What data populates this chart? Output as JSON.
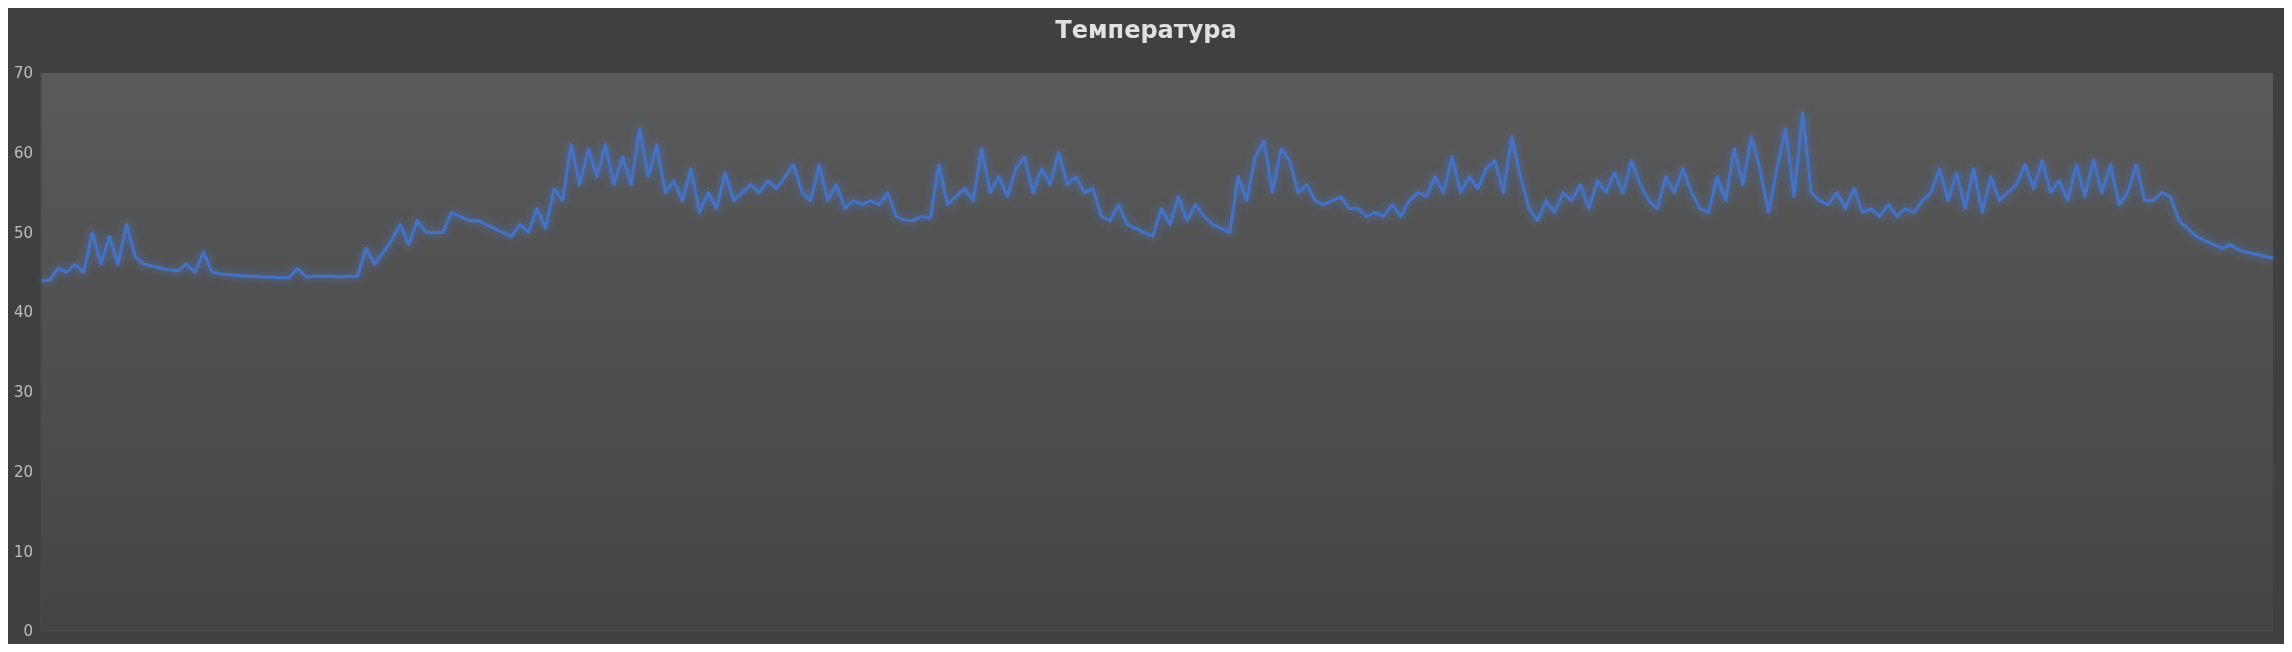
{
  "chart_data": {
    "type": "line",
    "title": "Температура",
    "categories": [
      null,
      null,
      null,
      null,
      null,
      null,
      null,
      null,
      null,
      null,
      null,
      null,
      null,
      null,
      null,
      null,
      null,
      null,
      null,
      null,
      null,
      null,
      null,
      null,
      null,
      null,
      null,
      null,
      null,
      null,
      null,
      null,
      null,
      null,
      null,
      null,
      null,
      null,
      null,
      null,
      null,
      null,
      null,
      null,
      null,
      null,
      null,
      null,
      null,
      null,
      null,
      null,
      null,
      null,
      null,
      null,
      null,
      null,
      null,
      null,
      null,
      null,
      null,
      null,
      null,
      null,
      null,
      null,
      null,
      null,
      null,
      null,
      null,
      null,
      null,
      null,
      null,
      null,
      null,
      null,
      null,
      null,
      null,
      null,
      null,
      null,
      null,
      null,
      null,
      null,
      null,
      null,
      null,
      null,
      null,
      null,
      null,
      null,
      null,
      null,
      null,
      null,
      null,
      null,
      null,
      null,
      null,
      null,
      null,
      null,
      null,
      null,
      null,
      null,
      null,
      null,
      null,
      null,
      null,
      null,
      null,
      null,
      null,
      null,
      null,
      null,
      null,
      null,
      null,
      null,
      null,
      null,
      null,
      null,
      null,
      null,
      null,
      null,
      null,
      null,
      null,
      null,
      null,
      null,
      null,
      null,
      null,
      null,
      null,
      null,
      null,
      null,
      null,
      null,
      null,
      null,
      null,
      null,
      null,
      null,
      null,
      null,
      null,
      null,
      null,
      null,
      null,
      null,
      null,
      null,
      null,
      null,
      null,
      null,
      null,
      null,
      null,
      null,
      null,
      null,
      null,
      null,
      null,
      null,
      null,
      null,
      null,
      null,
      null,
      null,
      null,
      null,
      null,
      null,
      null,
      null,
      null,
      null,
      null,
      null,
      null,
      null,
      null,
      null,
      null,
      null,
      null,
      null,
      null,
      null,
      null,
      null,
      null,
      null,
      null,
      null,
      null,
      null,
      null,
      null,
      null,
      null,
      null,
      null,
      null,
      null,
      null,
      null,
      null,
      null,
      null,
      null,
      null,
      null,
      null,
      null,
      null,
      null,
      null,
      null,
      null,
      null,
      null,
      null,
      null,
      null,
      null,
      null,
      null,
      null,
      null,
      null,
      null,
      null,
      null,
      null,
      null,
      null,
      null,
      null,
      null,
      null
    ],
    "series": [
      {
        "color": "#4472c4",
        "values": [
          44,
          44,
          45.5,
          45,
          46,
          45,
          50,
          46,
          49.5,
          46,
          51,
          47,
          46,
          45.8,
          45.5,
          45.3,
          45.2,
          46,
          45,
          47.5,
          45,
          44.8,
          44.7,
          44.6,
          44.5,
          44.5,
          44.4,
          44.4,
          44.3,
          44.3,
          45.5,
          44.4,
          44.5,
          44.5,
          44.5,
          44.4,
          44.5,
          44.5,
          48,
          46,
          47.5,
          49,
          51,
          48.5,
          51.5,
          50,
          50,
          50,
          52.5,
          52,
          51.5,
          51.5,
          51,
          50.5,
          50,
          49.5,
          51,
          50,
          53,
          50.5,
          55.5,
          54,
          61,
          56,
          60.5,
          57,
          61,
          56,
          59.5,
          56,
          63,
          57,
          61,
          55,
          56.5,
          54,
          58,
          52.5,
          55,
          53,
          57.5,
          54,
          55,
          56,
          55,
          56.5,
          55.5,
          57,
          58.5,
          55,
          54,
          58.5,
          54,
          56,
          53,
          54,
          53.5,
          54,
          53.5,
          55,
          52,
          51.5,
          51.5,
          52,
          51.8,
          58.5,
          53.5,
          54.5,
          55.5,
          54,
          60.5,
          55,
          57,
          54.5,
          58,
          59.5,
          55,
          58,
          56,
          60,
          56,
          57,
          55,
          55.5,
          52,
          51.5,
          53.5,
          51,
          50.5,
          50,
          49.5,
          53,
          51,
          54.5,
          51.5,
          53.5,
          52,
          51,
          50.5,
          50,
          57,
          54,
          59.5,
          61.5,
          55,
          60.5,
          59,
          55,
          56,
          54,
          53.5,
          54,
          54.5,
          53,
          53,
          52,
          52.5,
          52,
          53.5,
          52,
          54,
          55,
          54.5,
          57,
          55,
          59.5,
          55,
          57,
          55.5,
          58,
          59,
          55,
          62,
          57,
          53,
          51.5,
          54,
          52.5,
          55,
          54,
          56,
          53,
          56.5,
          55,
          57.5,
          55,
          59,
          56,
          54,
          53,
          57,
          55,
          58,
          55,
          53,
          52.5,
          57,
          54,
          60.5,
          56,
          62,
          58,
          52.5,
          58,
          63,
          54.5,
          65,
          55,
          54,
          53.5,
          55,
          53,
          55.5,
          52.5,
          53,
          52,
          53.5,
          52,
          53,
          52.5,
          54,
          55,
          58,
          54,
          57.5,
          53,
          58,
          52.5,
          57,
          54,
          55,
          56,
          58.5,
          55.5,
          59,
          55,
          56.5,
          54,
          58.5,
          54.5,
          59,
          55,
          58.5,
          53.5,
          55,
          58.5,
          54,
          54,
          55,
          54.5,
          51.5,
          50.5,
          49.5,
          49,
          48.5,
          48,
          48.5,
          47.8,
          47.5,
          47.3,
          47,
          46.8
        ]
      }
    ],
    "ylim": [
      0,
      70
    ],
    "yticks": [
      0,
      10,
      20,
      30,
      40,
      50,
      60,
      70
    ],
    "tick_labels": "y",
    "grid": false,
    "marker": "none",
    "line_style": "solid"
  }
}
